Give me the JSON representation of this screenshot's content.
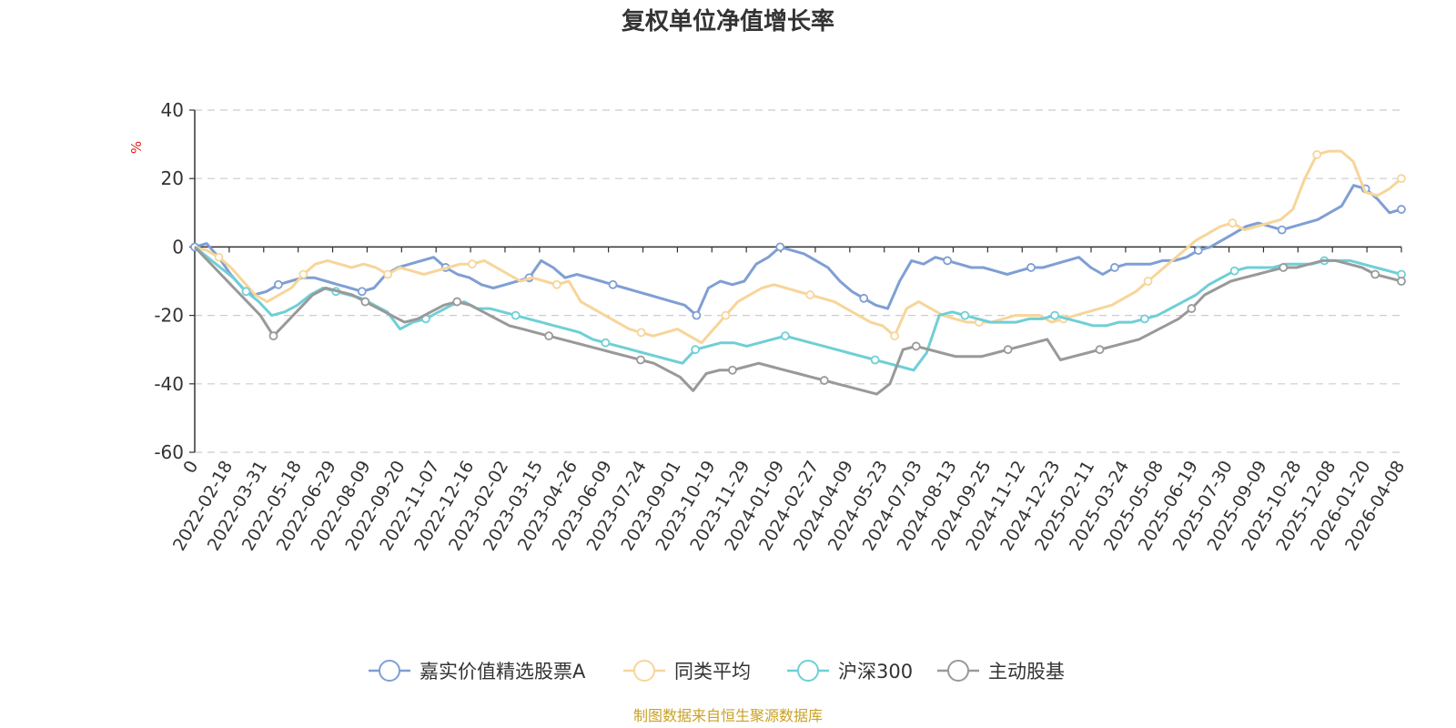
{
  "chart_data": {
    "type": "line",
    "title": "复权单位净值增长率",
    "ylabel": "%",
    "ylim": [
      -60,
      40
    ],
    "y_ticks": [
      40,
      20,
      0,
      -20,
      -40,
      -60
    ],
    "x_tick_labels": [
      "0",
      "2022-02-18",
      "2022-03-31",
      "2022-05-18",
      "2022-06-29",
      "2022-08-09",
      "2022-09-20",
      "2022-11-07",
      "2022-12-16",
      "2023-02-02",
      "2023-03-15",
      "2023-04-26",
      "2023-06-09",
      "2023-07-24",
      "2023-09-01",
      "2023-10-19",
      "2023-11-29",
      "2024-01-09",
      "2024-02-27",
      "2024-04-09",
      "2024-05-23",
      "2024-07-03",
      "2024-08-13",
      "2024-09-25",
      "2024-11-12",
      "2024-12-23",
      "2025-02-11",
      "2025-03-24",
      "2025-05-08",
      "2025-06-19",
      "2025-07-30",
      "2025-09-09",
      "2025-10-28",
      "2025-12-08",
      "2026-01-20",
      "2026-04-08"
    ],
    "grid": "horizontal-dashed",
    "legend_position": "bottom",
    "series": [
      {
        "name": "嘉实价值精选股票A",
        "color": "#7f9fd4",
        "values": [
          0,
          1,
          -3,
          -8,
          -12,
          -14,
          -13,
          -11,
          -10,
          -9,
          -9,
          -10,
          -11,
          -12,
          -13,
          -12,
          -8,
          -6,
          -5,
          -4,
          -3,
          -6,
          -8,
          -9,
          -11,
          -12,
          -11,
          -10,
          -9,
          -4,
          -6,
          -9,
          -8,
          -9,
          -10,
          -11,
          -12,
          -13,
          -14,
          -15,
          -16,
          -17,
          -20,
          -12,
          -10,
          -11,
          -10,
          -5,
          -3,
          0,
          -1,
          -2,
          -4,
          -6,
          -10,
          -13,
          -15,
          -17,
          -18,
          -10,
          -4,
          -5,
          -3,
          -4,
          -5,
          -6,
          -6,
          -7,
          -8,
          -7,
          -6,
          -6,
          -5,
          -4,
          -3,
          -6,
          -8,
          -6,
          -5,
          -5,
          -5,
          -4,
          -4,
          -3,
          -1,
          0,
          2,
          4,
          6,
          7,
          6,
          5,
          6,
          7,
          8,
          10,
          12,
          18,
          17,
          14,
          10,
          11
        ]
      },
      {
        "name": "同类平均",
        "color": "#f7d59a",
        "values": [
          0,
          -1,
          -3,
          -6,
          -10,
          -14,
          -16,
          -14,
          -12,
          -8,
          -5,
          -4,
          -5,
          -6,
          -5,
          -6,
          -8,
          -6,
          -7,
          -8,
          -7,
          -6,
          -5,
          -5,
          -4,
          -6,
          -8,
          -10,
          -9,
          -10,
          -11,
          -10,
          -16,
          -18,
          -20,
          -22,
          -24,
          -25,
          -26,
          -25,
          -24,
          -26,
          -28,
          -24,
          -20,
          -16,
          -14,
          -12,
          -11,
          -12,
          -13,
          -14,
          -15,
          -16,
          -18,
          -20,
          -22,
          -23,
          -26,
          -18,
          -16,
          -18,
          -20,
          -21,
          -22,
          -22,
          -22,
          -21,
          -20,
          -20,
          -20,
          -22,
          -21,
          -20,
          -19,
          -18,
          -17,
          -15,
          -13,
          -10,
          -7,
          -4,
          -1,
          2,
          4,
          6,
          7,
          5,
          6,
          7,
          8,
          11,
          20,
          27,
          28,
          28,
          25,
          16,
          15,
          17,
          20
        ]
      },
      {
        "name": "沪深300",
        "color": "#6fcfd6",
        "values": [
          0,
          -3,
          -6,
          -9,
          -13,
          -16,
          -20,
          -19,
          -17,
          -14,
          -12,
          -13,
          -14,
          -15,
          -17,
          -19,
          -24,
          -22,
          -21,
          -19,
          -17,
          -16,
          -18,
          -18,
          -19,
          -20,
          -21,
          -22,
          -23,
          -24,
          -25,
          -27,
          -28,
          -29,
          -30,
          -31,
          -32,
          -33,
          -34,
          -30,
          -29,
          -28,
          -28,
          -29,
          -28,
          -27,
          -26,
          -27,
          -28,
          -29,
          -30,
          -31,
          -32,
          -33,
          -34,
          -35,
          -36,
          -31,
          -20,
          -19,
          -20,
          -21,
          -22,
          -22,
          -22,
          -21,
          -21,
          -20,
          -21,
          -22,
          -23,
          -23,
          -22,
          -22,
          -21,
          -20,
          -18,
          -16,
          -14,
          -11,
          -9,
          -7,
          -6,
          -6,
          -6,
          -5,
          -5,
          -5,
          -4,
          -4,
          -4,
          -5,
          -6,
          -7,
          -8
        ]
      },
      {
        "name": "主动股基",
        "color": "#999999",
        "values": [
          0,
          -4,
          -8,
          -12,
          -16,
          -20,
          -26,
          -22,
          -18,
          -14,
          -12,
          -13,
          -14,
          -16,
          -18,
          -20,
          -22,
          -21,
          -19,
          -17,
          -16,
          -17,
          -19,
          -21,
          -23,
          -24,
          -25,
          -26,
          -27,
          -28,
          -29,
          -30,
          -31,
          -32,
          -33,
          -34,
          -36,
          -38,
          -42,
          -37,
          -36,
          -36,
          -35,
          -34,
          -35,
          -36,
          -37,
          -38,
          -39,
          -40,
          -41,
          -42,
          -43,
          -40,
          -30,
          -29,
          -30,
          -31,
          -32,
          -32,
          -32,
          -31,
          -30,
          -29,
          -28,
          -27,
          -33,
          -32,
          -31,
          -30,
          -29,
          -28,
          -27,
          -25,
          -23,
          -21,
          -18,
          -14,
          -12,
          -10,
          -9,
          -8,
          -7,
          -6,
          -6,
          -5,
          -4,
          -4,
          -5,
          -6,
          -8,
          -9,
          -10
        ]
      }
    ]
  },
  "source_note": "制图数据来自恒生聚源数据库"
}
